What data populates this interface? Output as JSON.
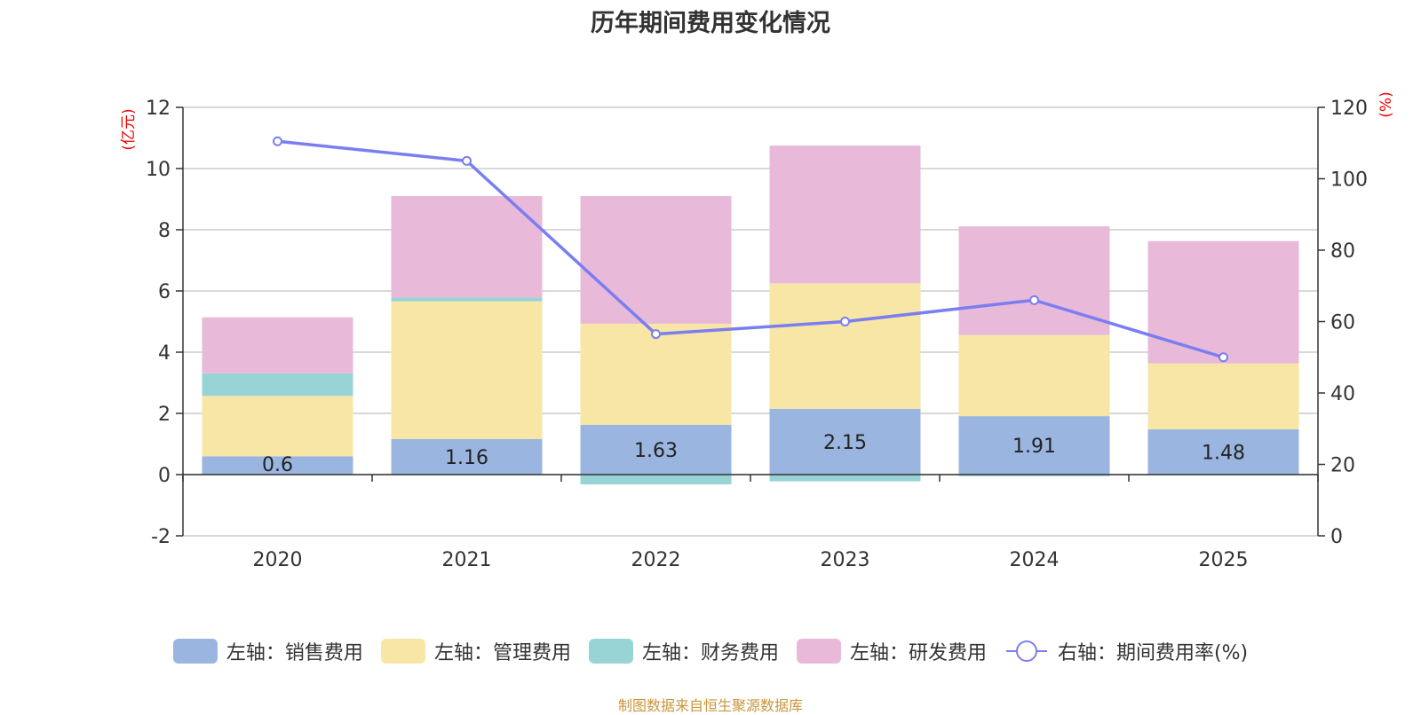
{
  "chart_data": {
    "type": "bar",
    "title": "历年期间费用变化情况",
    "categories": [
      "2020",
      "2021",
      "2022",
      "2023",
      "2024",
      "2025"
    ],
    "series": [
      {
        "name": "左轴：销售费用",
        "axis": "left",
        "color": "#9ab6e0",
        "values": [
          0.6,
          1.16,
          1.63,
          2.15,
          1.91,
          1.48
        ],
        "labels": [
          "0.6",
          "1.16",
          "1.63",
          "2.15",
          "1.91",
          "1.48"
        ]
      },
      {
        "name": "左轴：管理费用",
        "axis": "left",
        "color": "#f7e6a6",
        "values": [
          1.97,
          4.5,
          3.3,
          4.1,
          2.65,
          2.15
        ]
      },
      {
        "name": "左轴：财务费用",
        "axis": "left",
        "color": "#98d4d6",
        "values": [
          0.74,
          0.12,
          -0.32,
          -0.22,
          -0.05,
          0.0
        ]
      },
      {
        "name": "左轴：研发费用",
        "axis": "left",
        "color": "#e8b9d9",
        "values": [
          1.83,
          3.32,
          4.17,
          4.5,
          3.55,
          4.0
        ]
      },
      {
        "name": "右轴：期间费用率(%)",
        "axis": "right",
        "type": "line",
        "color": "#7a7ef0",
        "values": [
          110.5,
          105,
          56.5,
          60,
          66,
          50
        ]
      }
    ],
    "y_left": {
      "label": "(亿元)",
      "min": -2,
      "max": 12,
      "ticks": [
        -2,
        0,
        2,
        4,
        6,
        8,
        10,
        12
      ]
    },
    "y_right": {
      "label": "(%)",
      "min": 0,
      "max": 120,
      "ticks": [
        0,
        20,
        40,
        60,
        80,
        100,
        120
      ]
    },
    "grid": true,
    "legend_position": "bottom"
  },
  "source": "制图数据来自恒生聚源数据库"
}
